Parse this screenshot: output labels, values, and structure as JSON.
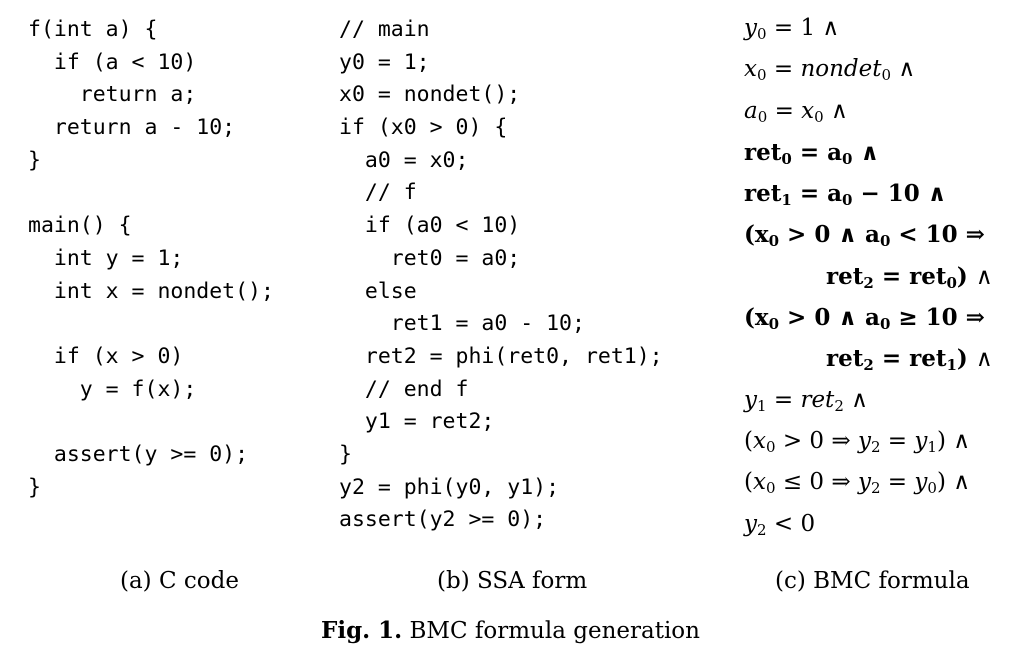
{
  "c_code": {
    "lines": [
      "f(int a) {",
      "  if (a < 10)",
      "    return a;",
      "  return a - 10;",
      "}",
      "",
      "main() {",
      "  int y = 1;",
      "  int x = nondet();",
      "",
      "  if (x > 0)",
      "    y = f(x);",
      "",
      "  assert(y >= 0);",
      "}"
    ],
    "caption": "(a) C code"
  },
  "ssa": {
    "lines": [
      "// main",
      "y0 = 1;",
      "x0 = nondet();",
      "if (x0 > 0) {",
      "  a0 = x0;",
      "  // f",
      "  if (a0 < 10)",
      "    ret0 = a0;",
      "  else",
      "    ret1 = a0 - 10;",
      "  ret2 = phi(ret0, ret1);",
      "  // end f",
      "  y1 = ret2;",
      "}",
      "y2 = phi(y0, y1);",
      "assert(y2 >= 0);"
    ],
    "caption": "(b) SSA form"
  },
  "bmc": {
    "caption": "(c) BMC formula"
  },
  "figure": {
    "label": "Fig. 1.",
    "title": "BMC formula generation"
  }
}
